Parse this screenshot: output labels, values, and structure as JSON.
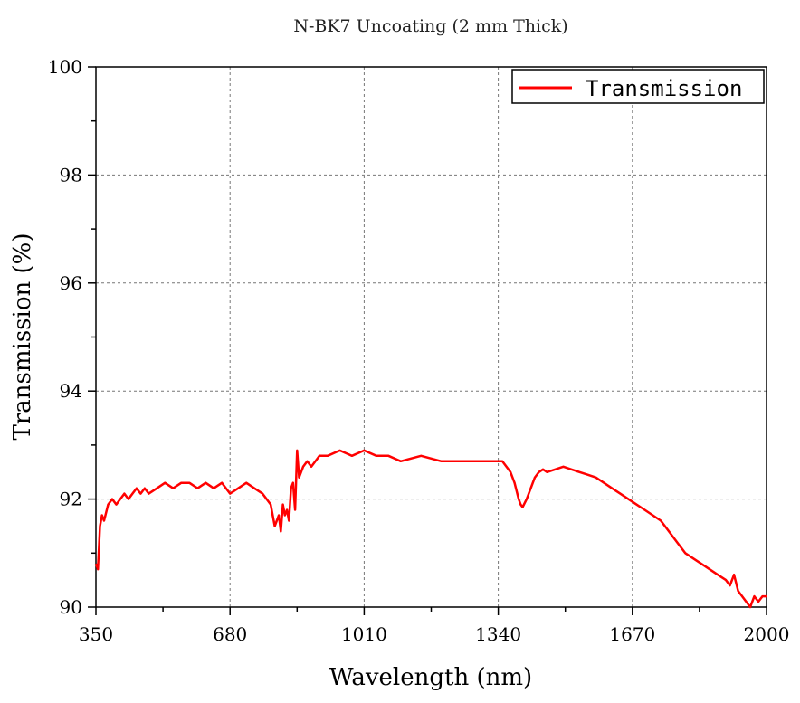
{
  "chart_data": {
    "type": "line",
    "title": "N-BK7 Uncoating (2 mm  Thick)",
    "xlabel": "Wavelength (nm)",
    "ylabel": "Transmission (%)",
    "xlim": [
      350,
      2000
    ],
    "ylim": [
      90,
      100
    ],
    "xticks": [
      350,
      680,
      1010,
      1340,
      1670,
      2000
    ],
    "yticks": [
      90,
      92,
      94,
      96,
      98,
      100
    ],
    "grid": true,
    "legend_position": "top-right",
    "series": [
      {
        "name": "Transmission",
        "color": "#ff0000",
        "x": [
          350,
          355,
          360,
          365,
          370,
          380,
          390,
          400,
          410,
          420,
          430,
          440,
          450,
          460,
          470,
          480,
          500,
          520,
          540,
          560,
          580,
          600,
          620,
          640,
          660,
          680,
          700,
          720,
          740,
          760,
          770,
          780,
          790,
          800,
          805,
          810,
          815,
          820,
          825,
          830,
          835,
          840,
          845,
          850,
          860,
          870,
          880,
          900,
          920,
          950,
          980,
          1010,
          1040,
          1070,
          1100,
          1150,
          1200,
          1250,
          1300,
          1340,
          1350,
          1360,
          1370,
          1380,
          1390,
          1395,
          1400,
          1410,
          1420,
          1430,
          1440,
          1450,
          1460,
          1480,
          1500,
          1520,
          1540,
          1560,
          1580,
          1600,
          1620,
          1640,
          1660,
          1680,
          1700,
          1720,
          1740,
          1760,
          1780,
          1800,
          1820,
          1840,
          1860,
          1880,
          1900,
          1910,
          1920,
          1930,
          1940,
          1950,
          1960,
          1970,
          1980,
          1990,
          2000
        ],
        "values": [
          90.8,
          90.7,
          91.5,
          91.7,
          91.6,
          91.9,
          92.0,
          91.9,
          92.0,
          92.1,
          92.0,
          92.1,
          92.2,
          92.1,
          92.2,
          92.1,
          92.2,
          92.3,
          92.2,
          92.3,
          92.3,
          92.2,
          92.3,
          92.2,
          92.3,
          92.1,
          92.2,
          92.3,
          92.2,
          92.1,
          92.0,
          91.9,
          91.5,
          91.7,
          91.4,
          91.9,
          91.7,
          91.8,
          91.6,
          92.2,
          92.3,
          91.8,
          92.9,
          92.4,
          92.6,
          92.7,
          92.6,
          92.8,
          92.8,
          92.9,
          92.8,
          92.9,
          92.8,
          92.8,
          92.7,
          92.8,
          92.7,
          92.7,
          92.7,
          92.7,
          92.7,
          92.6,
          92.5,
          92.3,
          92.0,
          91.9,
          91.85,
          92.0,
          92.2,
          92.4,
          92.5,
          92.55,
          92.5,
          92.55,
          92.6,
          92.55,
          92.5,
          92.45,
          92.4,
          92.3,
          92.2,
          92.1,
          92.0,
          91.9,
          91.8,
          91.7,
          91.6,
          91.4,
          91.2,
          91.0,
          90.9,
          90.8,
          90.7,
          90.6,
          90.5,
          90.4,
          90.6,
          90.3,
          90.2,
          90.1,
          90.0,
          90.2,
          90.1,
          90.2,
          90.2
        ]
      }
    ]
  }
}
